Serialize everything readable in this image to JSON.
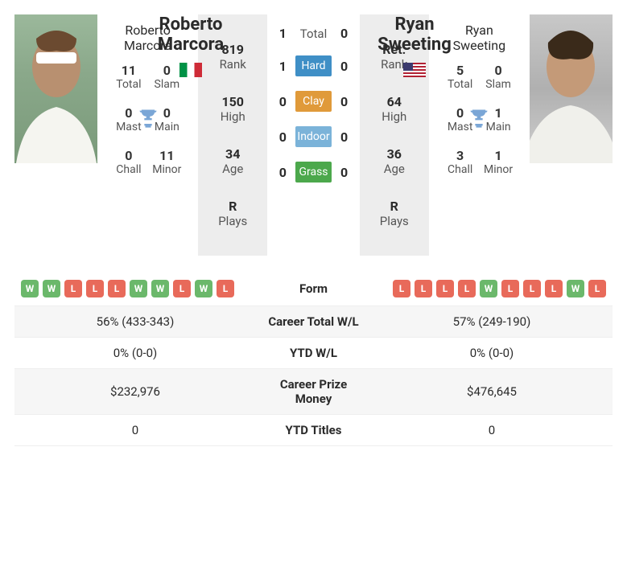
{
  "player1": {
    "name_line1": "Roberto",
    "name_line2": "Marcora",
    "full_name": "Roberto Marcora",
    "flag": "it",
    "rank": "819",
    "rank_label": "Rank",
    "high": "150",
    "high_label": "High",
    "age": "34",
    "age_label": "Age",
    "plays": "R",
    "plays_label": "Plays",
    "titles": {
      "total": "11",
      "total_label": "Total",
      "slam": "0",
      "slam_label": "Slam",
      "mast": "0",
      "mast_label": "Mast",
      "main": "0",
      "main_label": "Main",
      "chall": "0",
      "chall_label": "Chall",
      "minor": "11",
      "minor_label": "Minor"
    },
    "form": [
      "W",
      "W",
      "L",
      "L",
      "L",
      "W",
      "W",
      "L",
      "W",
      "L"
    ]
  },
  "player2": {
    "name_line1": "Ryan",
    "name_line2": "Sweeting",
    "full_name": "Ryan Sweeting",
    "flag": "us",
    "rank": "Ret.",
    "rank_label": "Rank",
    "high": "64",
    "high_label": "High",
    "age": "36",
    "age_label": "Age",
    "plays": "R",
    "plays_label": "Plays",
    "titles": {
      "total": "5",
      "total_label": "Total",
      "slam": "0",
      "slam_label": "Slam",
      "mast": "0",
      "mast_label": "Mast",
      "main": "1",
      "main_label": "Main",
      "chall": "3",
      "chall_label": "Chall",
      "minor": "1",
      "minor_label": "Minor"
    },
    "form": [
      "L",
      "L",
      "L",
      "L",
      "W",
      "L",
      "L",
      "L",
      "W",
      "L"
    ]
  },
  "h2h": {
    "total_label": "Total",
    "p1_total": "1",
    "p2_total": "0",
    "hard_label": "Hard",
    "p1_hard": "1",
    "p2_hard": "0",
    "clay_label": "Clay",
    "p1_clay": "0",
    "p2_clay": "0",
    "indoor_label": "Indoor",
    "p1_indoor": "0",
    "p2_indoor": "0",
    "grass_label": "Grass",
    "p1_grass": "0",
    "p2_grass": "0"
  },
  "table": {
    "form_label": "Form",
    "career_wl_label": "Career Total W/L",
    "p1_career_wl": "56% (433-343)",
    "p2_career_wl": "57% (249-190)",
    "ytd_wl_label": "YTD W/L",
    "p1_ytd_wl": "0% (0-0)",
    "p2_ytd_wl": "0% (0-0)",
    "prize_label": "Career Prize Money",
    "p1_prize": "$232,976",
    "p2_prize": "$476,645",
    "ytd_titles_label": "YTD Titles",
    "p1_ytd_titles": "0",
    "p2_ytd_titles": "0"
  },
  "colors": {
    "pill_w": "#6bb86b",
    "pill_l": "#e86a5a",
    "hard": "#3f8fc6",
    "clay": "#e09a3a",
    "indoor": "#7bb3d9",
    "grass": "#4ca84c",
    "trophy": "#7aa6d6"
  }
}
